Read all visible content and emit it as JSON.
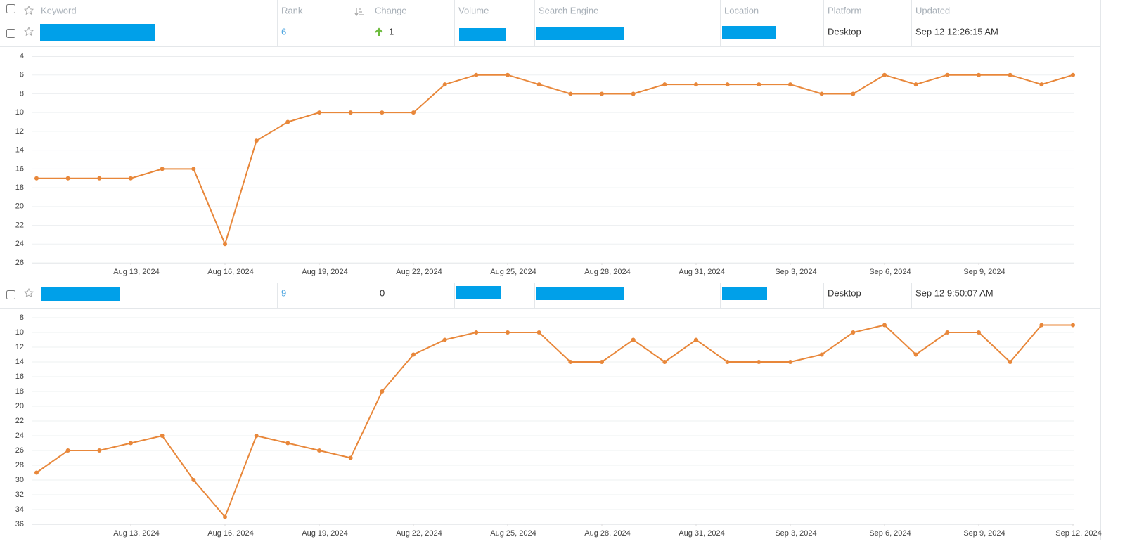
{
  "table": {
    "columns": [
      "Keyword",
      "Rank",
      "Change",
      "Volume",
      "Search Engine",
      "Location",
      "Platform",
      "Updated"
    ],
    "rows": [
      {
        "rank": 6,
        "change": 1,
        "trend": "up",
        "platform": "Desktop",
        "updated": "Sep 12 12:26:15 AM"
      },
      {
        "rank": 9,
        "change": 0,
        "platform": "Desktop",
        "updated": "Sep 12 9:50:07 AM"
      }
    ]
  },
  "chart_data": [
    {
      "type": "line",
      "color": "#e8873a",
      "y_inverted": true,
      "grid": true,
      "x": [
        "2024-08-10",
        "2024-08-11",
        "2024-08-12",
        "2024-08-13",
        "2024-08-14",
        "2024-08-15",
        "2024-08-16",
        "2024-08-17",
        "2024-08-18",
        "2024-08-19",
        "2024-08-20",
        "2024-08-21",
        "2024-08-22",
        "2024-08-23",
        "2024-08-24",
        "2024-08-25",
        "2024-08-26",
        "2024-08-27",
        "2024-08-28",
        "2024-08-29",
        "2024-08-30",
        "2024-08-31",
        "2024-09-01",
        "2024-09-02",
        "2024-09-03",
        "2024-09-04",
        "2024-09-05",
        "2024-09-06",
        "2024-09-07",
        "2024-09-08",
        "2024-09-09",
        "2024-09-10",
        "2024-09-11",
        "2024-09-12"
      ],
      "values": [
        17,
        17,
        17,
        17,
        16,
        16,
        24,
        13,
        11,
        10,
        10,
        10,
        10,
        7,
        6,
        6,
        7,
        8,
        8,
        8,
        7,
        7,
        7,
        7,
        7,
        8,
        8,
        6,
        7,
        6,
        6,
        6,
        7,
        6
      ],
      "xlim": [
        "2024-08-10",
        "2024-09-12"
      ],
      "xticks": [
        {
          "value": "2024-08-13",
          "label": "Aug 13, 2024"
        },
        {
          "value": "2024-08-16",
          "label": "Aug 16, 2024"
        },
        {
          "value": "2024-08-19",
          "label": "Aug 19, 2024"
        },
        {
          "value": "2024-08-22",
          "label": "Aug 22, 2024"
        },
        {
          "value": "2024-08-25",
          "label": "Aug 25, 2024"
        },
        {
          "value": "2024-08-28",
          "label": "Aug 28, 2024"
        },
        {
          "value": "2024-08-31",
          "label": "Aug 31, 2024"
        },
        {
          "value": "2024-09-03",
          "label": "Sep 3, 2024"
        },
        {
          "value": "2024-09-06",
          "label": "Sep 6, 2024"
        },
        {
          "value": "2024-09-09",
          "label": "Sep 9, 2024"
        }
      ],
      "ylim": [
        4,
        26
      ],
      "yticks": [
        4,
        6,
        8,
        10,
        12,
        14,
        16,
        18,
        20,
        22,
        24,
        26
      ]
    },
    {
      "type": "line",
      "color": "#e8873a",
      "y_inverted": true,
      "grid": true,
      "x": [
        "2024-08-10",
        "2024-08-11",
        "2024-08-12",
        "2024-08-13",
        "2024-08-14",
        "2024-08-15",
        "2024-08-16",
        "2024-08-17",
        "2024-08-18",
        "2024-08-19",
        "2024-08-20",
        "2024-08-21",
        "2024-08-22",
        "2024-08-23",
        "2024-08-24",
        "2024-08-25",
        "2024-08-26",
        "2024-08-27",
        "2024-08-28",
        "2024-08-29",
        "2024-08-30",
        "2024-08-31",
        "2024-09-01",
        "2024-09-02",
        "2024-09-03",
        "2024-09-04",
        "2024-09-05",
        "2024-09-06",
        "2024-09-07",
        "2024-09-08",
        "2024-09-09",
        "2024-09-10",
        "2024-09-11",
        "2024-09-12"
      ],
      "values": [
        29,
        26,
        26,
        25,
        24,
        30,
        35,
        24,
        25,
        26,
        27,
        18,
        13,
        11,
        10,
        10,
        10,
        14,
        14,
        11,
        14,
        11,
        14,
        14,
        14,
        13,
        10,
        9,
        13,
        10,
        10,
        14,
        9,
        9
      ],
      "xlim": [
        "2024-08-10",
        "2024-09-12"
      ],
      "xticks": [
        {
          "value": "2024-08-13",
          "label": "Aug 13, 2024"
        },
        {
          "value": "2024-08-16",
          "label": "Aug 16, 2024"
        },
        {
          "value": "2024-08-19",
          "label": "Aug 19, 2024"
        },
        {
          "value": "2024-08-22",
          "label": "Aug 22, 2024"
        },
        {
          "value": "2024-08-25",
          "label": "Aug 25, 2024"
        },
        {
          "value": "2024-08-28",
          "label": "Aug 28, 2024"
        },
        {
          "value": "2024-08-31",
          "label": "Aug 31, 2024"
        },
        {
          "value": "2024-09-03",
          "label": "Sep 3, 2024"
        },
        {
          "value": "2024-09-06",
          "label": "Sep 6, 2024"
        },
        {
          "value": "2024-09-09",
          "label": "Sep 9, 2024"
        },
        {
          "value": "2024-09-12",
          "label": "Sep 12, 2024"
        }
      ],
      "ylim": [
        8,
        36
      ],
      "yticks": [
        8,
        10,
        12,
        14,
        16,
        18,
        20,
        22,
        24,
        26,
        28,
        30,
        32,
        34,
        36
      ]
    }
  ]
}
